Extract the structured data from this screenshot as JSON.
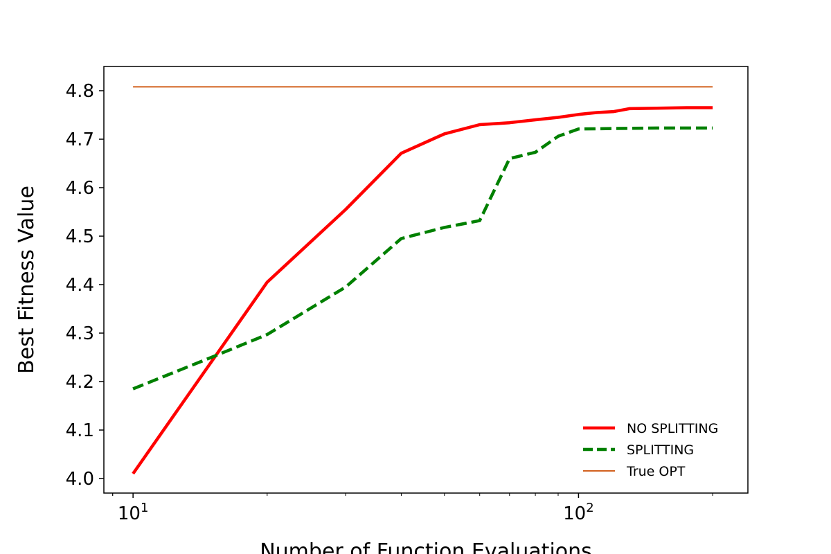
{
  "chart_data": {
    "type": "line",
    "xlabel": "Number of Function Evaluations",
    "ylabel": "Best Fitness Value",
    "xscale": "log",
    "xlim": [
      8.6,
      240
    ],
    "ylim": [
      3.97,
      4.85
    ],
    "grid": false,
    "legend_position": "bottom-right",
    "x_ticks": [
      {
        "value": 10,
        "base": "10",
        "exp": "1"
      },
      {
        "value": 100,
        "base": "10",
        "exp": "2"
      }
    ],
    "y_ticks": [
      "4.0",
      "4.1",
      "4.2",
      "4.3",
      "4.4",
      "4.5",
      "4.6",
      "4.7",
      "4.8"
    ],
    "series": [
      {
        "name": "NO SPLITTING",
        "color": "#ff0000",
        "style": "solid",
        "x": [
          10,
          20,
          30,
          40,
          50,
          60,
          70,
          80,
          90,
          100,
          110,
          120,
          130,
          150,
          175,
          200
        ],
        "y": [
          4.01,
          4.405,
          4.555,
          4.671,
          4.711,
          4.73,
          4.734,
          4.74,
          4.745,
          4.751,
          4.755,
          4.757,
          4.763,
          4.764,
          4.765,
          4.765
        ]
      },
      {
        "name": "SPLITTING",
        "color": "#008000",
        "style": "dashed",
        "x": [
          10,
          15,
          20,
          30,
          40,
          50,
          60,
          70,
          80,
          90,
          100,
          120,
          150,
          200
        ],
        "y": [
          4.185,
          4.25,
          4.297,
          4.395,
          4.495,
          4.518,
          4.532,
          4.66,
          4.673,
          4.706,
          4.721,
          4.722,
          4.723,
          4.723
        ]
      },
      {
        "name": "True OPT",
        "color": "#d2601e",
        "style": "solid-thin",
        "x": [
          10,
          200
        ],
        "y": [
          4.808,
          4.808
        ]
      }
    ]
  }
}
